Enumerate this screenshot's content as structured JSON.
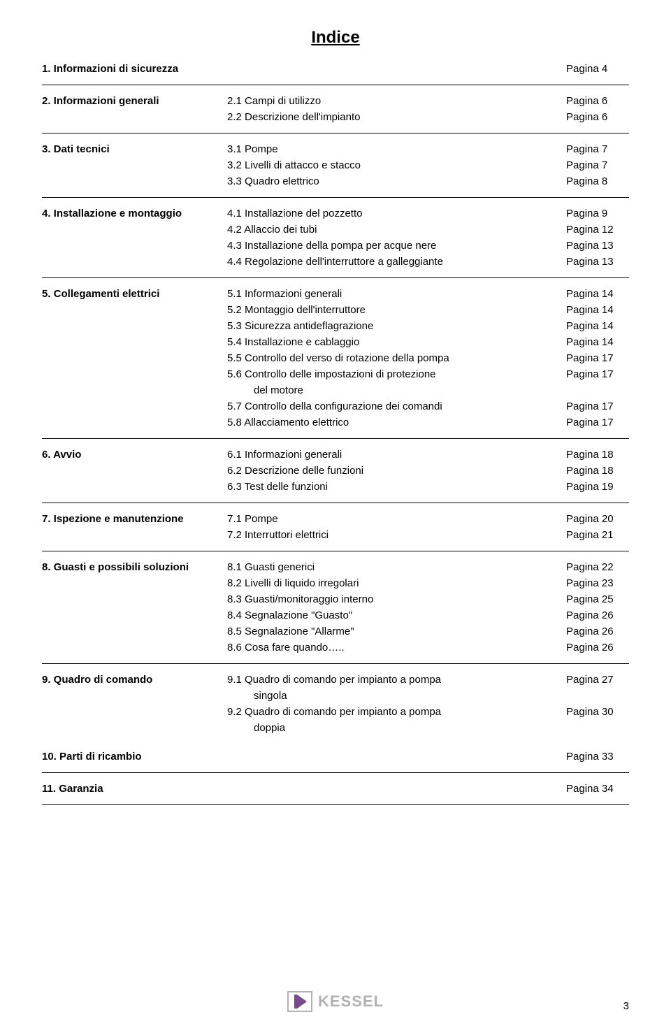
{
  "title": "Indice",
  "page_label_prefix": "Pagina",
  "footer": {
    "brand": "KESSEL",
    "page_number": "3"
  },
  "sections": [
    {
      "heading": "1. Informazioni di sicurezza",
      "heading_page": "Pagina 4",
      "items": []
    },
    {
      "heading": "2. Informazioni generali",
      "items": [
        {
          "label": "2.1 Campi di utilizzo",
          "page": "Pagina 6"
        },
        {
          "label": "2.2 Descrizione dell'impianto",
          "page": "Pagina 6"
        }
      ]
    },
    {
      "heading": "3. Dati tecnici",
      "items": [
        {
          "label": "3.1 Pompe",
          "page": "Pagina 7"
        },
        {
          "label": "3.2 Livelli di attacco e stacco",
          "page": "Pagina 7"
        },
        {
          "label": "3.3 Quadro elettrico",
          "page": "Pagina 8"
        }
      ]
    },
    {
      "heading": "4. Installazione e montaggio",
      "items": [
        {
          "label": "4.1 Installazione del pozzetto",
          "page": "Pagina 9"
        },
        {
          "label": "4.2 Allaccio dei tubi",
          "page": "Pagina 12"
        },
        {
          "label": "4.3 Installazione della pompa per acque nere",
          "page": "Pagina 13"
        },
        {
          "label": "4.4 Regolazione dell'interruttore a galleggiante",
          "page": "Pagina 13"
        }
      ]
    },
    {
      "heading": "5. Collegamenti elettrici",
      "items": [
        {
          "label": "5.1 Informazioni generali",
          "page": "Pagina 14"
        },
        {
          "label": "5.2 Montaggio dell'interruttore",
          "page": "Pagina 14"
        },
        {
          "label": "5.3 Sicurezza antideflagrazione",
          "page": "Pagina 14"
        },
        {
          "label": "5.4 Installazione e cablaggio",
          "page": "Pagina 14"
        },
        {
          "label": "5.5 Controllo del verso di rotazione della pompa",
          "page": "Pagina 17"
        },
        {
          "label": "5.6 Controllo delle impostazioni di protezione",
          "page": "Pagina 17",
          "extra": "del motore"
        },
        {
          "label": "5.7 Controllo della configurazione dei comandi",
          "page": "Pagina 17"
        },
        {
          "label": "5.8 Allacciamento elettrico",
          "page": "Pagina 17"
        }
      ]
    },
    {
      "heading": "6. Avvio",
      "items": [
        {
          "label": "6.1 Informazioni generali",
          "page": "Pagina 18"
        },
        {
          "label": "6.2 Descrizione delle funzioni",
          "page": "Pagina 18"
        },
        {
          "label": "6.3 Test delle funzioni",
          "page": "Pagina 19"
        }
      ]
    },
    {
      "heading": "7. Ispezione e manutenzione",
      "items": [
        {
          "label": "7.1 Pompe",
          "page": "Pagina 20"
        },
        {
          "label": "7.2 Interruttori elettrici",
          "page": "Pagina 21"
        }
      ]
    },
    {
      "heading": "8. Guasti e possibili soluzioni",
      "items": [
        {
          "label": "8.1 Guasti generici",
          "page": "Pagina 22"
        },
        {
          "label": "8.2 Livelli di liquido irregolari",
          "page": "Pagina 23"
        },
        {
          "label": "8.3 Guasti/monitoraggio interno",
          "page": "Pagina 25"
        },
        {
          "label": "8.4 Segnalazione \"Guasto\"",
          "page": "Pagina 26"
        },
        {
          "label": "8.5 Segnalazione \"Allarme\"",
          "page": "Pagina 26"
        },
        {
          "label": "8.6 Cosa fare quando…..",
          "page": "Pagina 26"
        }
      ]
    },
    {
      "heading": "9. Quadro di comando",
      "items": [
        {
          "label": "9.1 Quadro di comando per impianto a pompa",
          "page": "Pagina 27",
          "extra": "singola"
        },
        {
          "label": "9.2 Quadro di comando per impianto a pompa",
          "page": "Pagina 30",
          "extra": "doppia"
        }
      ],
      "trailing_heading": "10. Parti di ricambio",
      "trailing_page": "Pagina 33"
    },
    {
      "heading": "11. Garanzia",
      "heading_page": "Pagina 34",
      "items": []
    }
  ]
}
